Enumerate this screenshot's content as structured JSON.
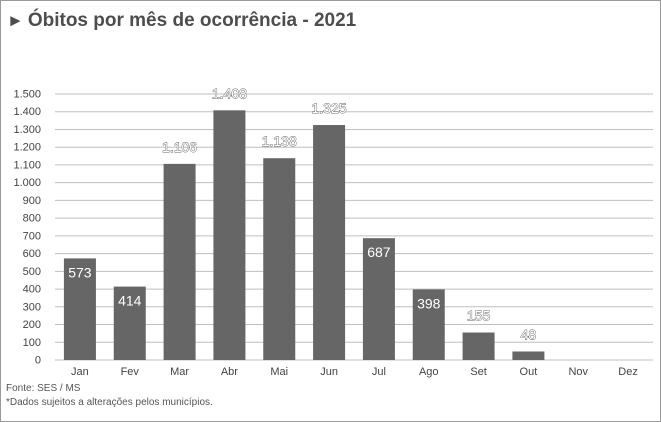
{
  "header": {
    "arrow": "►",
    "title": "Óbitos por mês de ocorrência - 2021"
  },
  "chart_data": {
    "type": "bar",
    "title": "Óbitos por mês de ocorrência - 2021",
    "categories": [
      "Jan",
      "Fev",
      "Mar",
      "Abr",
      "Mai",
      "Jun",
      "Jul",
      "Ago",
      "Set",
      "Out",
      "Nov",
      "Dez"
    ],
    "values": [
      573,
      414,
      1106,
      1408,
      1138,
      1325,
      687,
      398,
      155,
      48,
      null,
      null
    ],
    "labels": [
      "573",
      "414",
      "1.106",
      "1.408",
      "1.138",
      "1.325",
      "687",
      "398",
      "155",
      "48",
      "",
      ""
    ],
    "ylim": [
      0,
      1500
    ],
    "yticks": [
      0,
      100,
      200,
      300,
      400,
      500,
      600,
      700,
      800,
      900,
      1000,
      1100,
      1200,
      1300,
      1400,
      1500
    ],
    "ytick_labels": [
      "0",
      "100",
      "200",
      "300",
      "400",
      "500",
      "600",
      "700",
      "800",
      "900",
      "1.000",
      "1.100",
      "1.200",
      "1.300",
      "1.400",
      "1.500"
    ],
    "grid": true,
    "bar_color": "#666666",
    "grid_color": "#bfbfbf"
  },
  "footer": {
    "source": "Fonte: SES / MS",
    "note": "*Dados sujeitos a alterações pelos municípios."
  }
}
